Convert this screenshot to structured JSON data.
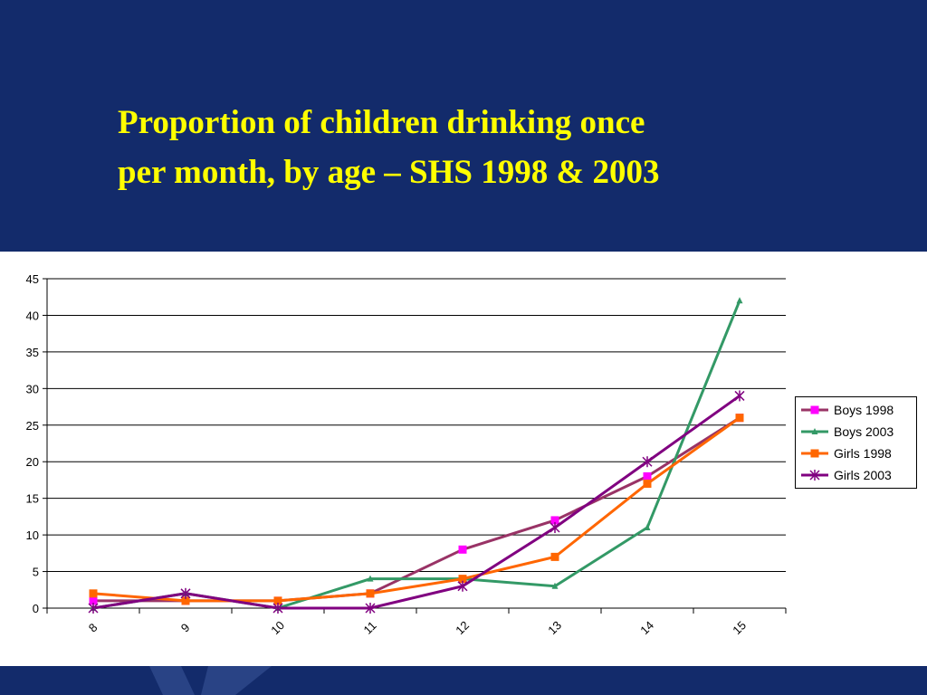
{
  "slide": {
    "title_line1": "Proportion of children drinking once",
    "title_line2": "per month, by age – SHS 1998 & 2003",
    "header_color": "#132b6b",
    "title_color": "#ffff00"
  },
  "chart_data": {
    "type": "line",
    "categories": [
      "8",
      "9",
      "10",
      "11",
      "12",
      "13",
      "14",
      "15"
    ],
    "ylim": [
      0,
      45
    ],
    "yticks": [
      0,
      5,
      10,
      15,
      20,
      25,
      30,
      35,
      40,
      45
    ],
    "grid": true,
    "legend_position": "right",
    "series": [
      {
        "name": "Boys 1998",
        "color": "#993366",
        "marker": "square",
        "marker_color": "#ff00ff",
        "values": [
          1,
          1,
          1,
          2,
          8,
          12,
          18,
          26
        ]
      },
      {
        "name": "Boys 2003",
        "color": "#339966",
        "marker": "triangle",
        "marker_color": "#339966",
        "values": [
          0,
          2,
          0,
          4,
          4,
          3,
          11,
          42
        ]
      },
      {
        "name": "Girls 1998",
        "color": "#ff6600",
        "marker": "square",
        "marker_color": "#ff6600",
        "values": [
          2,
          1,
          1,
          2,
          4,
          7,
          17,
          26
        ]
      },
      {
        "name": "Girls 2003",
        "color": "#800080",
        "marker": "star",
        "marker_color": "#800080",
        "values": [
          0,
          2,
          0,
          0,
          3,
          11,
          20,
          29
        ]
      }
    ]
  }
}
